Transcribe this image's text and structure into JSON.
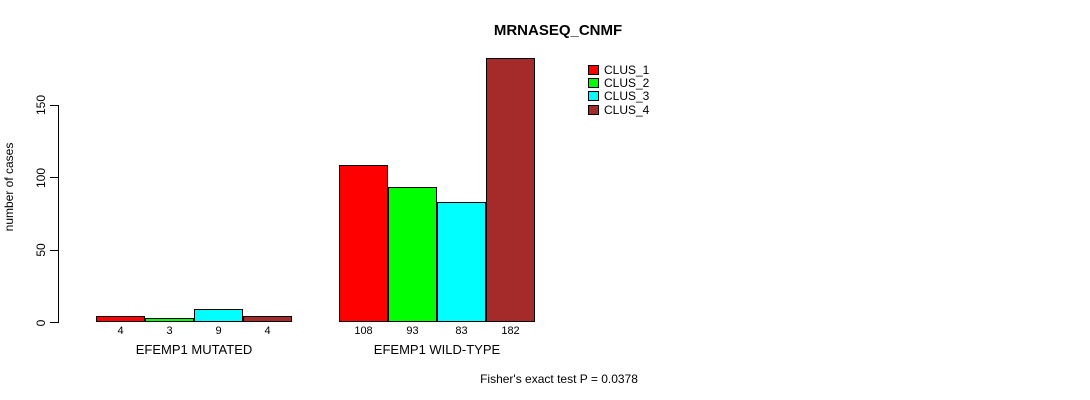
{
  "chart_data": {
    "type": "bar",
    "title": "MRNASEQ_CNMF",
    "ylabel": "number of cases",
    "xlabel": "",
    "yticks": [
      0,
      50,
      100,
      150
    ],
    "ylim": [
      0,
      190
    ],
    "grid": false,
    "legend_position": "top-right-inside",
    "categories": [
      "EFEMP1 MUTATED",
      "EFEMP1 WILD-TYPE"
    ],
    "series": [
      {
        "name": "CLUS_1",
        "color": "#ff0000",
        "values": [
          4,
          108
        ]
      },
      {
        "name": "CLUS_2",
        "color": "#00ff00",
        "values": [
          3,
          93
        ]
      },
      {
        "name": "CLUS_3",
        "color": "#00ffff",
        "values": [
          9,
          83
        ]
      },
      {
        "name": "CLUS_4",
        "color": "#a52a2a",
        "values": [
          4,
          182
        ]
      }
    ],
    "annotation": "Fisher's exact test P = 0.0378",
    "axis_color": "#000000",
    "text_color": "#000000",
    "background": "#ffffff"
  }
}
